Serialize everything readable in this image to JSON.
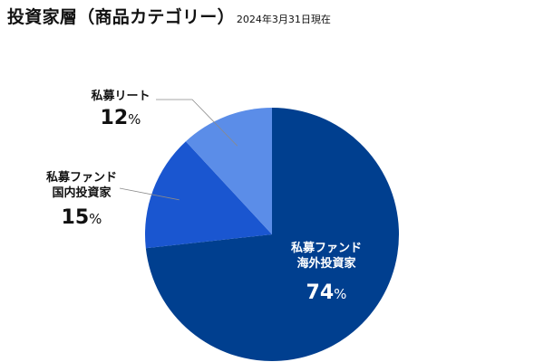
{
  "header": {
    "title": "投資家層（商品カテゴリー）",
    "date": "2024年3月31日現在"
  },
  "chart_data": {
    "type": "pie",
    "title": "投資家層（商品カテゴリー）",
    "unit": "%",
    "slices": [
      {
        "name": "私募ファンド海外投資家",
        "lines": [
          "私募ファンド",
          "海外投資家"
        ],
        "value": 74,
        "color": "#003f8f"
      },
      {
        "name": "私募ファンド国内投資家",
        "lines": [
          "私募ファンド",
          "国内投資家"
        ],
        "value": 15,
        "color": "#1a56d0"
      },
      {
        "name": "私募リート",
        "lines": [
          "私募リート"
        ],
        "value": 12,
        "color": "#5b8de8"
      }
    ]
  }
}
